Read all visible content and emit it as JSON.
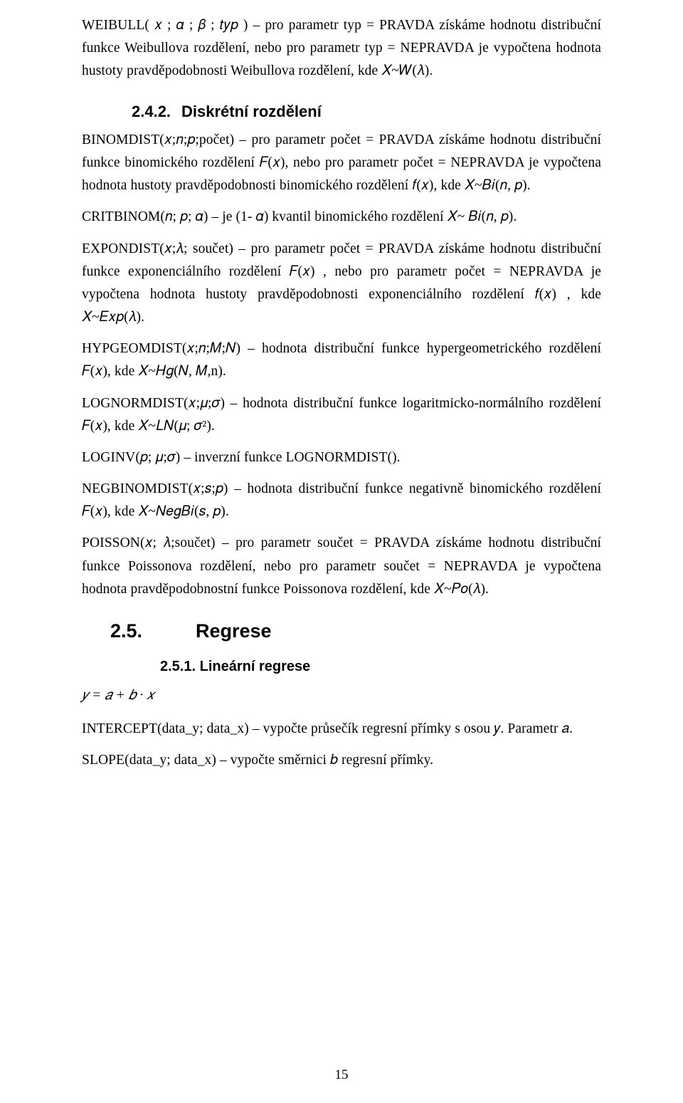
{
  "colors": {
    "text": "#000000",
    "background": "#ffffff"
  },
  "typography": {
    "body_font": "Times New Roman",
    "body_size_pt": 12,
    "heading_font": "Arial",
    "line_height": 1.65
  },
  "paragraphs": {
    "p1": "WEIBULL( 𝑥 ; 𝛼 ; 𝛽 ; 𝑡𝑦𝑝 ) – pro parametr typ = PRAVDA získáme hodnotu distribuční funkce Weibullova rozdělení, nebo pro parametr typ = NEPRAVDA je vypočtena hodnota hustoty pravděpodobnosti Weibullova rozdělení, kde 𝑋~𝑊(𝜆).",
    "p2": "BINOMDIST(𝑥;𝑛;𝑝;počet) – pro parametr počet = PRAVDA získáme hodnotu distribuční funkce binomického rozdělení 𝐹(𝑥), nebo pro parametr počet = NEPRAVDA je vypočtena hodnota hustoty pravděpodobnosti binomického rozdělení 𝑓(𝑥), kde 𝑋~𝐵𝑖(𝑛, 𝑝).",
    "p3": "CRITBINOM(𝑛; 𝑝; 𝛼) –  je  (1- 𝛼) kvantil binomického rozdělení 𝑋~ 𝐵𝑖(𝑛, 𝑝).",
    "p4": "EXPONDIST(𝑥;𝜆; součet) – pro parametr počet = PRAVDA získáme hodnotu distribuční funkce exponenciálního rozdělení 𝐹(𝑥) , nebo pro parametr počet = NEPRAVDA je vypočtena hodnota hustoty pravděpodobnosti exponenciálního rozdělení 𝑓(𝑥) , kde 𝑋~𝐸𝑥𝑝(𝜆).",
    "p5": "HYPGEOMDIST(𝑥;𝑛;𝑀;𝑁) – hodnota distribuční funkce hypergeometrického rozdělení 𝐹(𝑥), kde 𝑋~𝐻𝑔(𝑁, 𝑀,n).",
    "p6": "LOGNORMDIST(𝑥;𝜇;𝜎) – hodnota distribuční funkce logaritmicko-normálního rozdělení 𝐹(𝑥), kde 𝑋~𝐿𝑁(𝜇; 𝜎²).",
    "p7": "LOGINV(𝑝; 𝜇;𝜎) – inverzní funkce LOGNORMDIST().",
    "p8": "NEGBINOMDIST(𝑥;𝑠;𝑝) – hodnota distribuční funkce negativně binomického rozdělení 𝐹(𝑥), kde 𝑋~𝑁𝑒𝑔𝐵𝑖(𝑠, 𝑝).",
    "p9": "POISSON(𝑥; 𝜆;součet) – pro parametr součet = PRAVDA získáme hodnotu distribuční funkce Poissonova rozdělení, nebo pro parametr součet = NEPRAVDA je vypočtena hodnota pravděpodobnostní funkce Poissonova rozdělení, kde 𝑋~𝑃𝑜(𝜆).",
    "p10": "INTERCEPT(data_y; data_x) – vypočte průsečík regresní přímky s osou 𝑦. Parametr 𝑎.",
    "p11": "SLOPE(data_y; data_x) – vypočte směrnici 𝑏 regresní přímky."
  },
  "headings": {
    "h3_242_num": "2.4.2.",
    "h3_242_title": "Diskrétní rozdělení",
    "h2_25_num": "2.5.",
    "h2_25_title": "Regrese",
    "h3_251_num": "2.5.1.",
    "h3_251_title": "Lineární regrese"
  },
  "equation": "𝑦 = 𝑎 + 𝑏 · 𝑥",
  "page_number": "15"
}
